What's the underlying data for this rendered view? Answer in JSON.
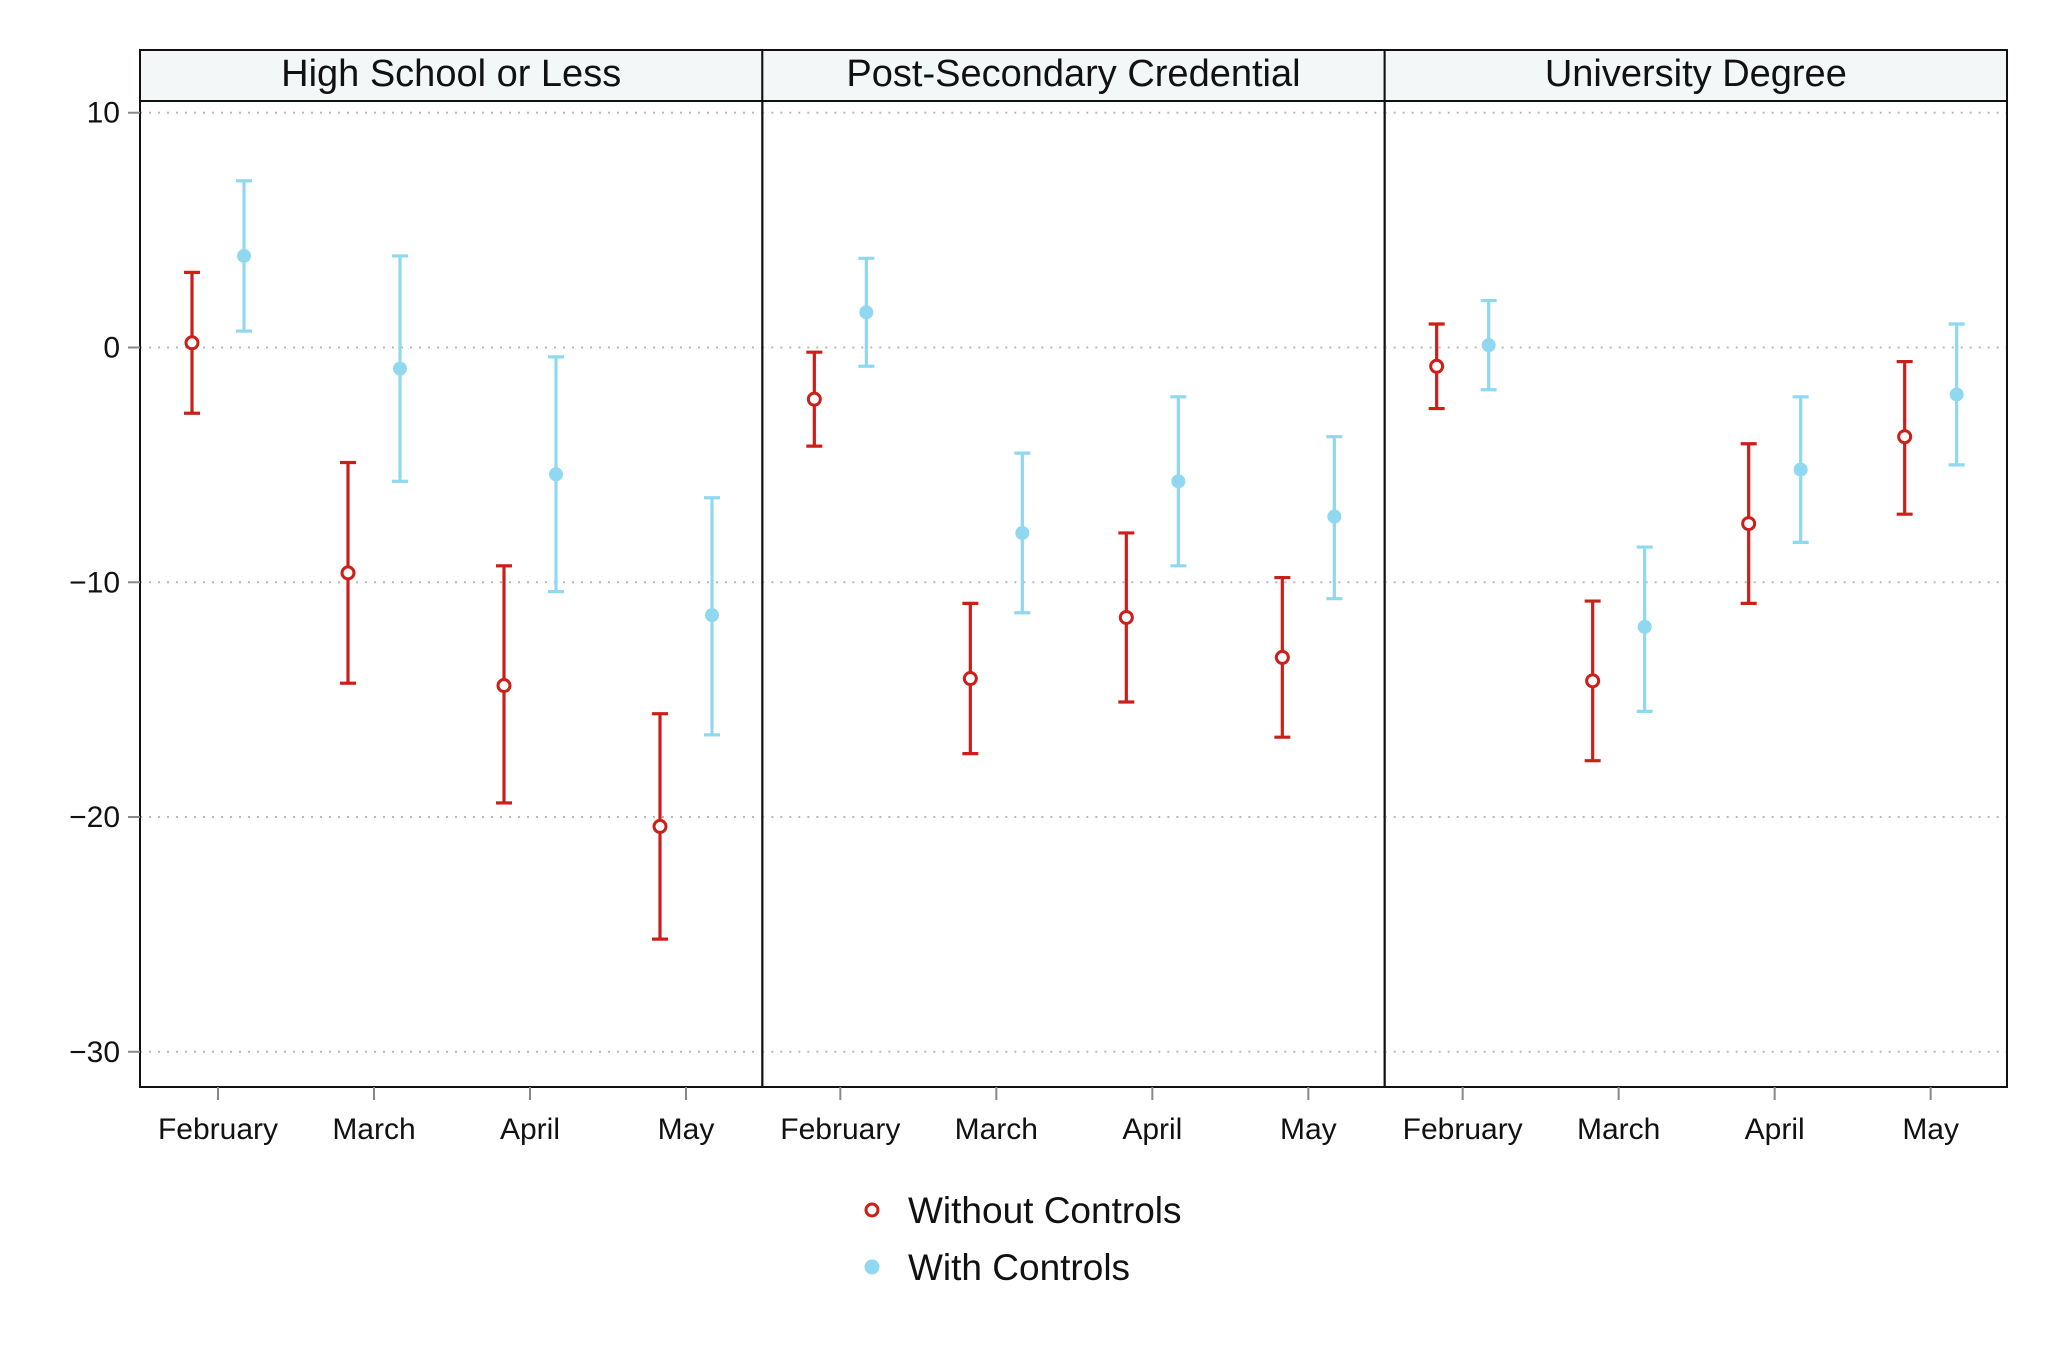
{
  "chart_data": {
    "type": "errorbar",
    "ylim": [
      -31.5,
      10.5
    ],
    "yticks": [
      10,
      0,
      -10,
      -20,
      -30
    ],
    "ytick_labels": [
      "10",
      "0",
      "−10",
      "−20",
      "−30"
    ],
    "categories": [
      "February",
      "March",
      "April",
      "May"
    ],
    "grid": "horizontal-dotted",
    "legend_position": "bottom-center",
    "series": [
      {
        "name": "Without Controls",
        "color": "#cc1f1a",
        "marker": "hollow-circle"
      },
      {
        "name": "With Controls",
        "color": "#8fd8f0",
        "marker": "filled-circle"
      }
    ],
    "panels": [
      {
        "title": "High School or Less",
        "data": {
          "Without Controls": [
            {
              "month": "February",
              "estimate": 0.2,
              "lower": -2.8,
              "upper": 3.2
            },
            {
              "month": "March",
              "estimate": -9.6,
              "lower": -14.3,
              "upper": -4.9
            },
            {
              "month": "April",
              "estimate": -14.4,
              "lower": -19.4,
              "upper": -9.3
            },
            {
              "month": "May",
              "estimate": -20.4,
              "lower": -25.2,
              "upper": -15.6
            }
          ],
          "With Controls": [
            {
              "month": "February",
              "estimate": 3.9,
              "lower": 0.7,
              "upper": 7.1
            },
            {
              "month": "March",
              "estimate": -0.9,
              "lower": -5.7,
              "upper": 3.9
            },
            {
              "month": "April",
              "estimate": -5.4,
              "lower": -10.4,
              "upper": -0.4
            },
            {
              "month": "May",
              "estimate": -11.4,
              "lower": -16.5,
              "upper": -6.4
            }
          ]
        }
      },
      {
        "title": "Post-Secondary Credential",
        "data": {
          "Without Controls": [
            {
              "month": "February",
              "estimate": -2.2,
              "lower": -4.2,
              "upper": -0.2
            },
            {
              "month": "March",
              "estimate": -14.1,
              "lower": -17.3,
              "upper": -10.9
            },
            {
              "month": "April",
              "estimate": -11.5,
              "lower": -15.1,
              "upper": -7.9
            },
            {
              "month": "May",
              "estimate": -13.2,
              "lower": -16.6,
              "upper": -9.8
            }
          ],
          "With Controls": [
            {
              "month": "February",
              "estimate": 1.5,
              "lower": -0.8,
              "upper": 3.8
            },
            {
              "month": "March",
              "estimate": -7.9,
              "lower": -11.3,
              "upper": -4.5
            },
            {
              "month": "April",
              "estimate": -5.7,
              "lower": -9.3,
              "upper": -2.1
            },
            {
              "month": "May",
              "estimate": -7.2,
              "lower": -10.7,
              "upper": -3.8
            }
          ]
        }
      },
      {
        "title": "University Degree",
        "data": {
          "Without Controls": [
            {
              "month": "February",
              "estimate": -0.8,
              "lower": -2.6,
              "upper": 1.0
            },
            {
              "month": "March",
              "estimate": -14.2,
              "lower": -17.6,
              "upper": -10.8
            },
            {
              "month": "April",
              "estimate": -7.5,
              "lower": -10.9,
              "upper": -4.1
            },
            {
              "month": "May",
              "estimate": -3.8,
              "lower": -7.1,
              "upper": -0.6
            }
          ],
          "With Controls": [
            {
              "month": "February",
              "estimate": 0.1,
              "lower": -1.8,
              "upper": 2.0
            },
            {
              "month": "March",
              "estimate": -11.9,
              "lower": -15.5,
              "upper": -8.5
            },
            {
              "month": "April",
              "estimate": -5.2,
              "lower": -8.3,
              "upper": -2.1
            },
            {
              "month": "May",
              "estimate": -2.0,
              "lower": -5.0,
              "upper": 1.0
            }
          ]
        }
      }
    ]
  }
}
